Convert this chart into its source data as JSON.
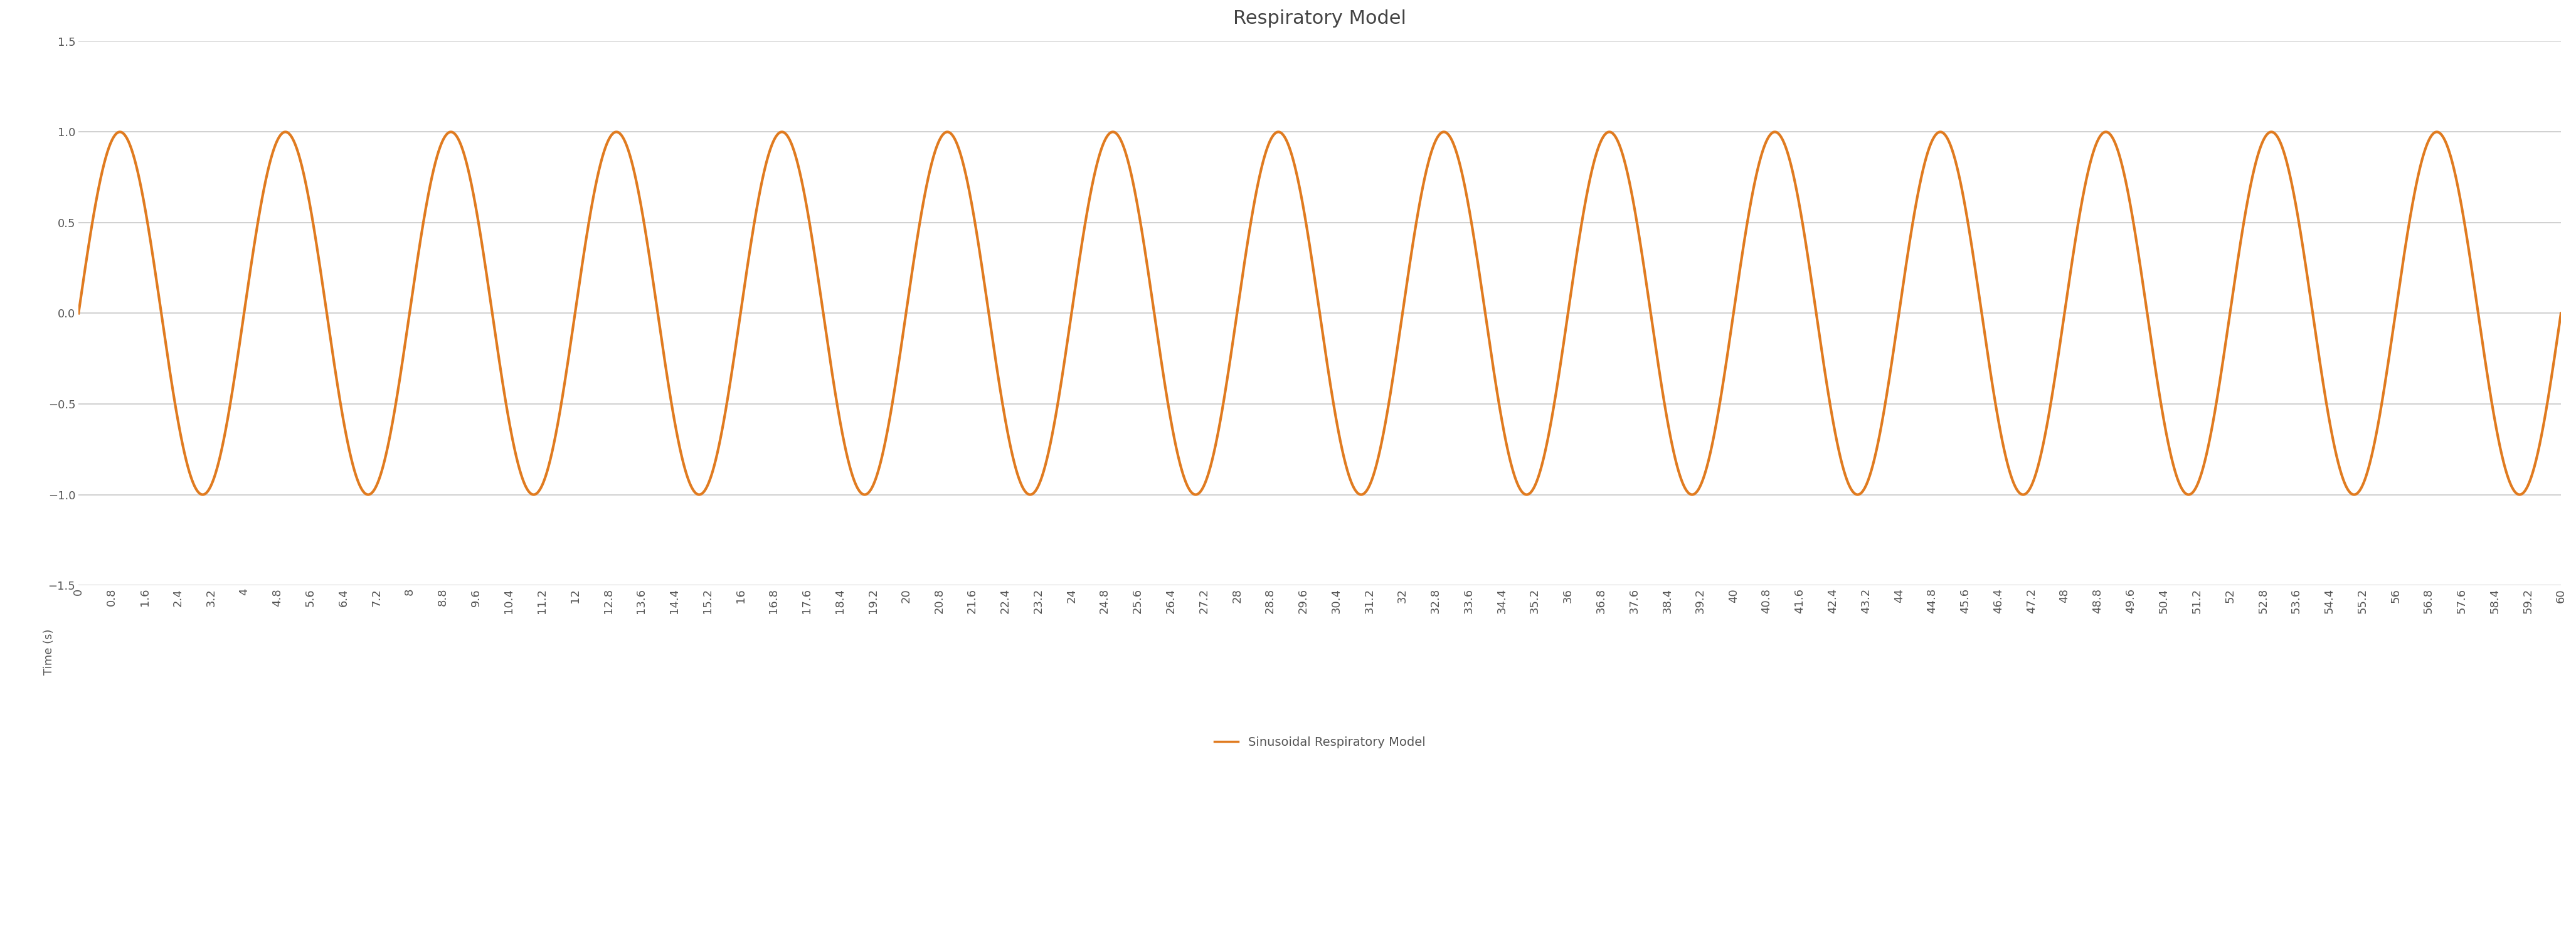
{
  "title": "Respiratory Model",
  "xlabel": "Time (s)",
  "line_color": "#E07B20",
  "line_width": 3.0,
  "legend_label": "Sinusoidal Respiratory Model",
  "ylim": [
    -1.5,
    1.5
  ],
  "xlim": [
    0,
    60
  ],
  "x_start": 0.0,
  "x_end": 60.0,
  "amplitude": 1.0,
  "period": 4.0,
  "y_ticks": [
    -1.5,
    -1,
    -0.5,
    0,
    0.5,
    1,
    1.5
  ],
  "x_tick_start": 0.0,
  "x_tick_step": 0.8,
  "background_color": "#ffffff",
  "grid_color": "#c8c8c8",
  "tick_label_color": "#555555",
  "title_color": "#444444",
  "title_fontsize": 22,
  "tick_fontsize": 13,
  "legend_fontsize": 14,
  "legend_line_color": "#E07B20"
}
